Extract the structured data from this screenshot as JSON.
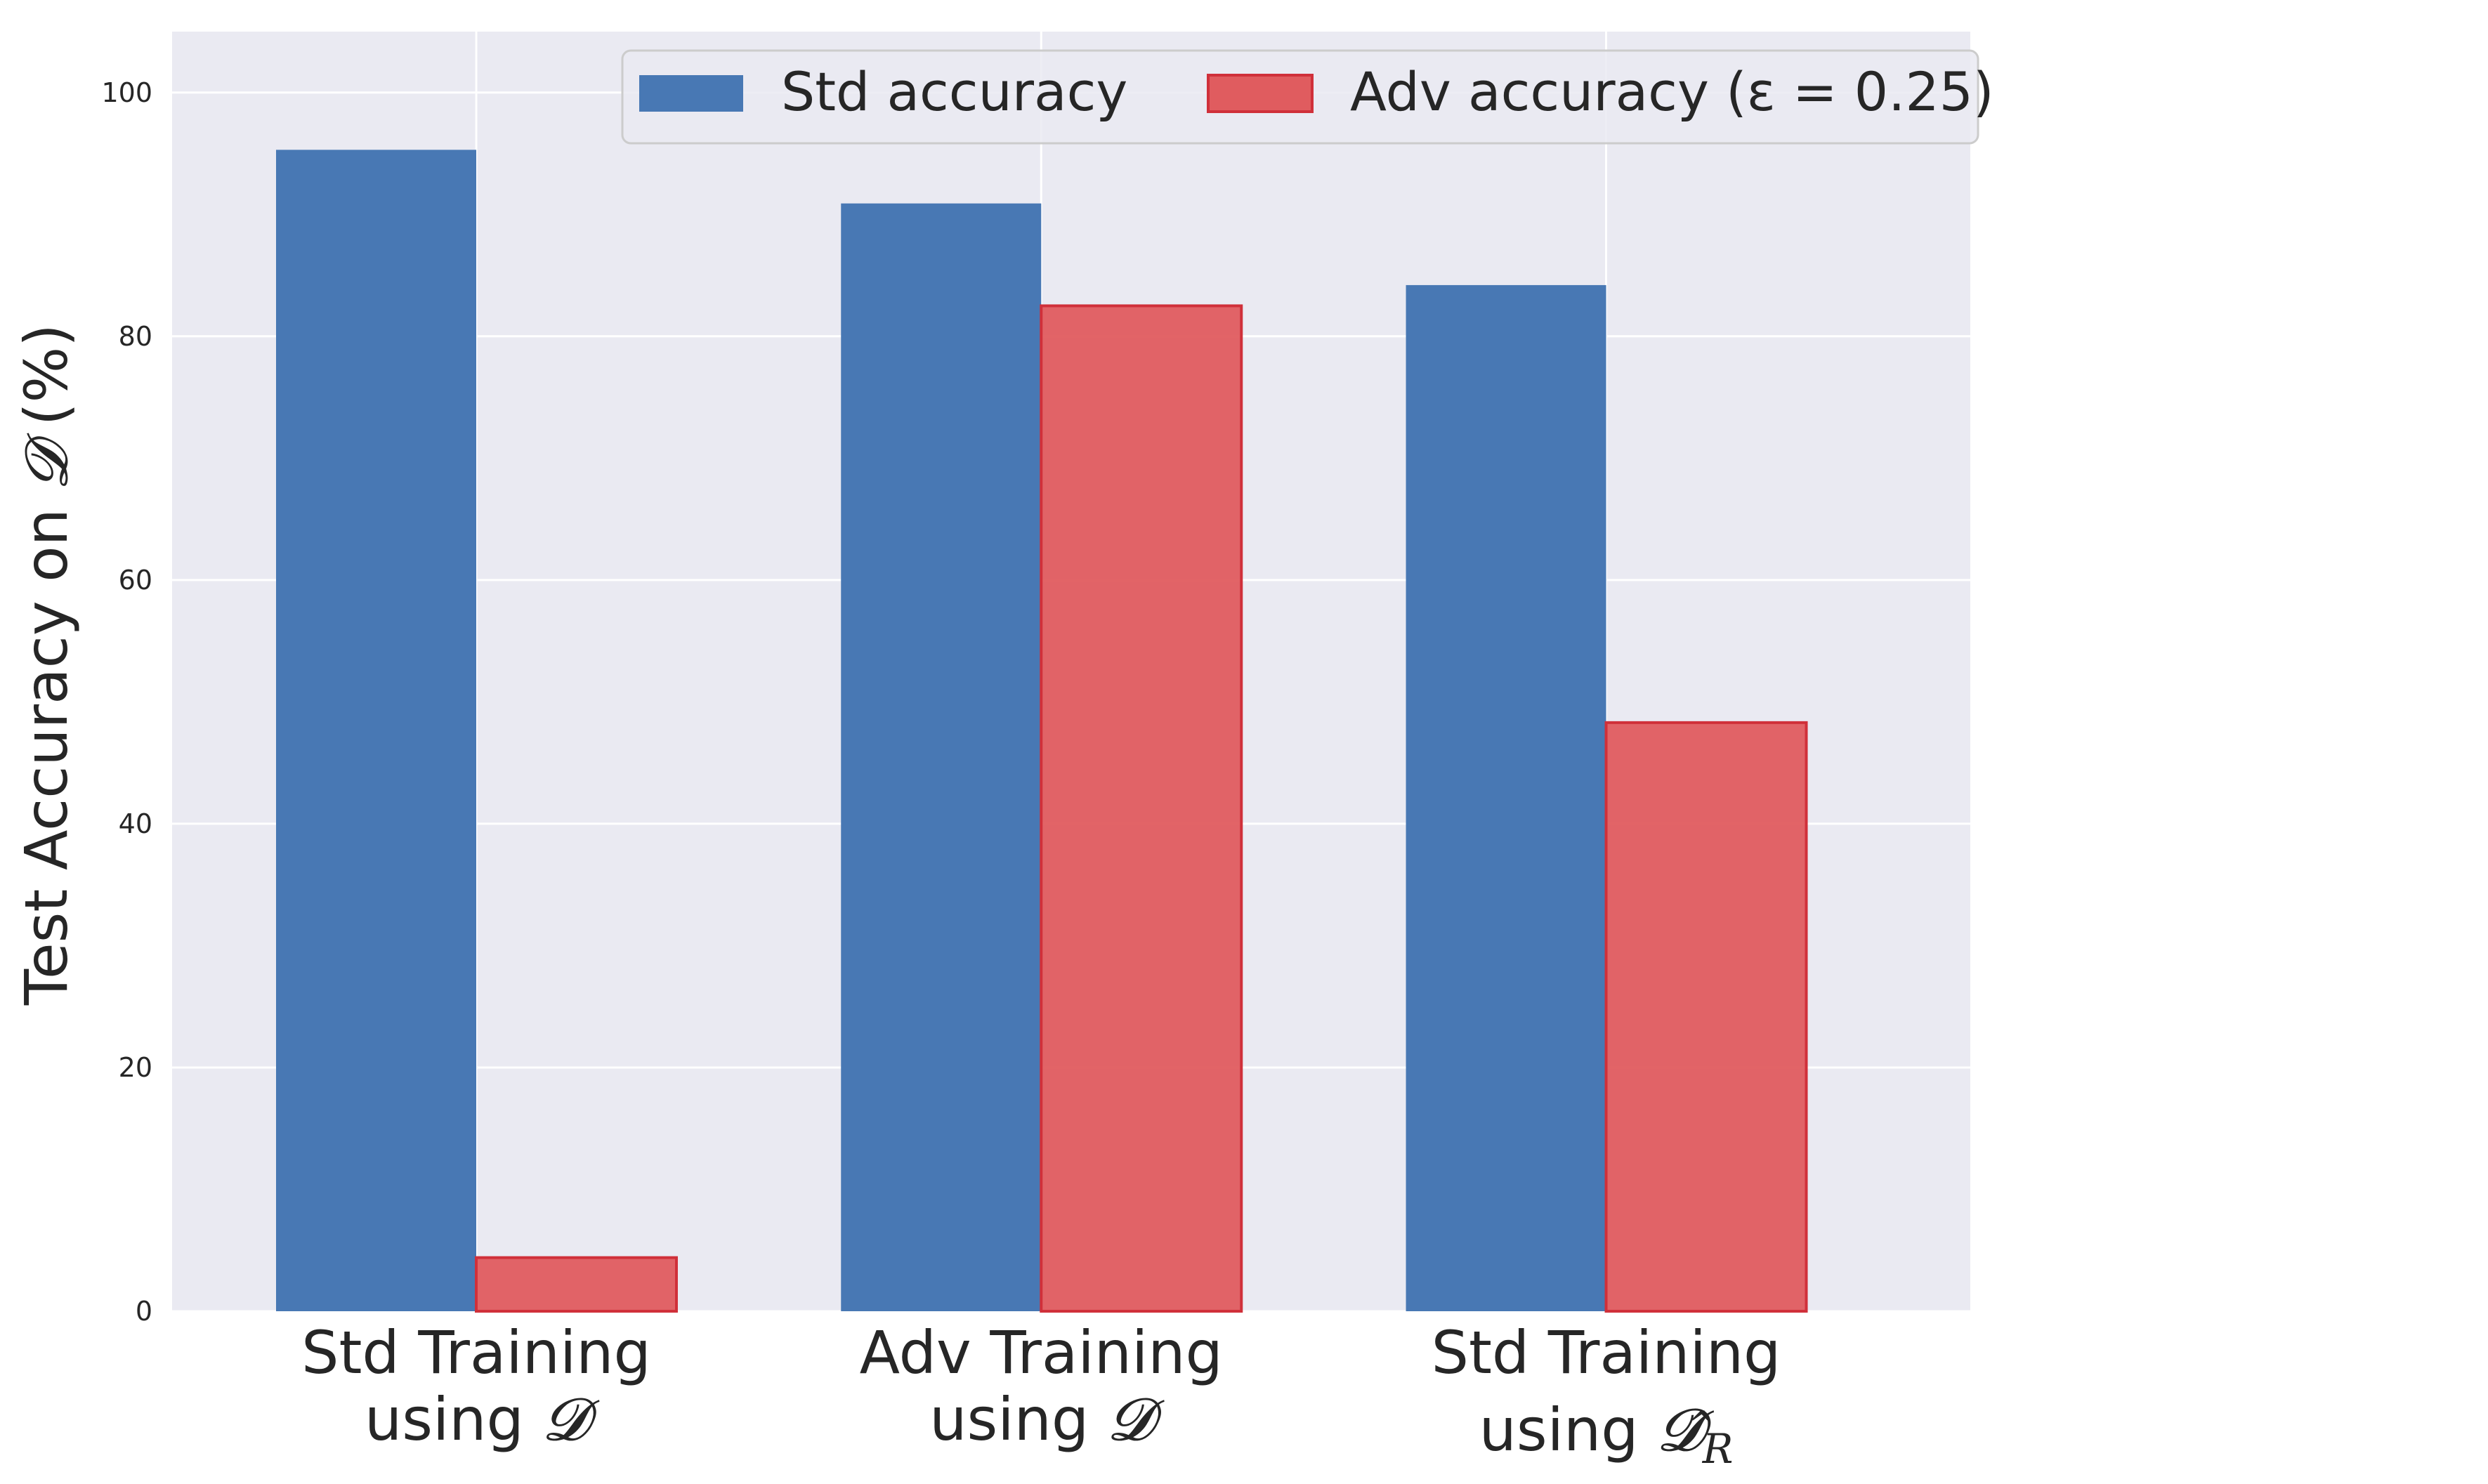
{
  "chart_data": {
    "type": "bar",
    "categories": [
      {
        "line1": "Std Training",
        "line2_prefix": "using ",
        "line2_symbol": "𝓓",
        "line2_subscript": ""
      },
      {
        "line1": "Adv Training",
        "line2_prefix": "using ",
        "line2_symbol": "𝓓",
        "line2_subscript": ""
      },
      {
        "line1": "Std Training",
        "line2_prefix": "using ",
        "line2_symbol": "𝓓̂",
        "line2_subscript": "R"
      }
    ],
    "series": [
      {
        "name": "Std accuracy",
        "values": [
          95.3,
          90.9,
          84.2
        ],
        "color": "#4878b4"
      },
      {
        "name": "Adv accuracy (ε = 0.25)",
        "values": [
          4.4,
          82.5,
          48.3
        ],
        "color": "#e05c5f"
      }
    ],
    "ylabel_prefix": "Test Accuracy on ",
    "ylabel_symbol": "𝓓",
    "ylabel_suffix": " (%)",
    "ylim": [
      0,
      105
    ],
    "yticks": [
      0,
      20,
      40,
      60,
      80,
      100
    ],
    "grid": true,
    "legend_position": "top-right",
    "background_color": "#eaeaf2",
    "grid_color": "#ffffff"
  }
}
